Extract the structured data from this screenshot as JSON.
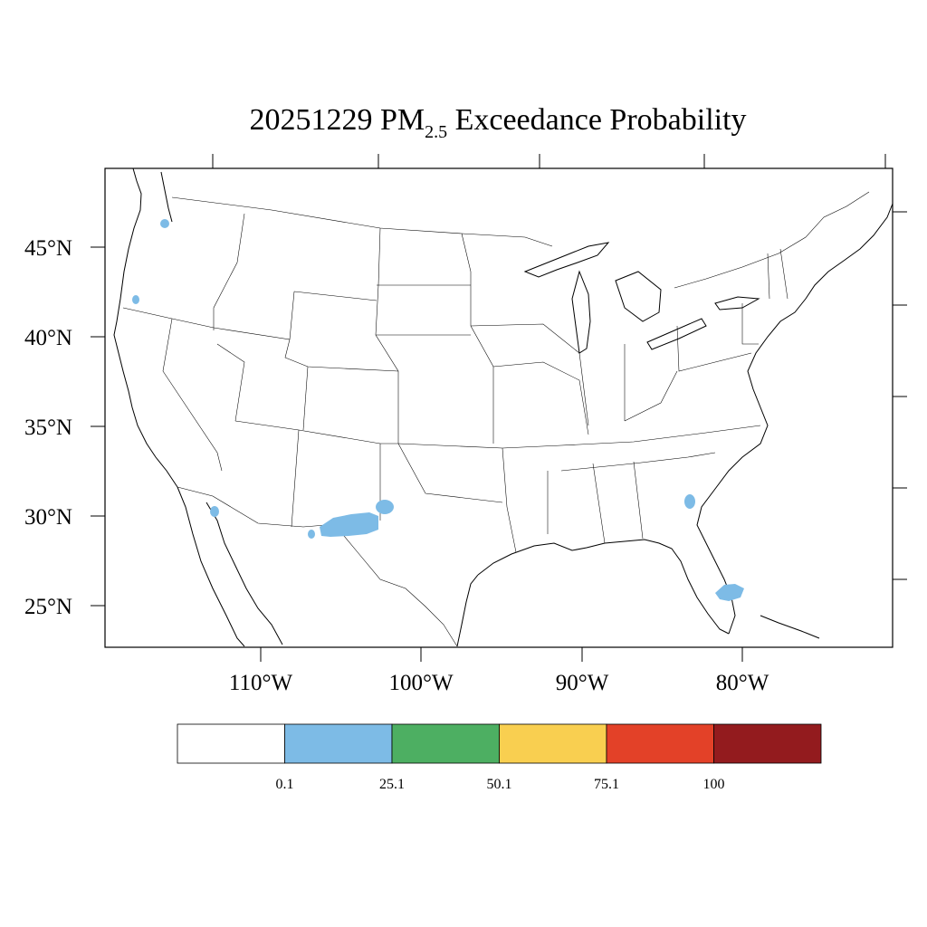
{
  "title": {
    "date": "20251229",
    "pm_text": "PM",
    "pm_subscript": "2.5",
    "suffix": "Exceedance Probability"
  },
  "map": {
    "lat_labels": [
      "45°N",
      "40°N",
      "35°N",
      "30°N",
      "25°N"
    ],
    "lon_labels": [
      "110°W",
      "100°W",
      "90°W",
      "80°W"
    ],
    "highlight_color": "#7dbbe6",
    "highlight_regions": [
      "western-washington",
      "southern-oregon",
      "northwest-sonora-gulf-coast",
      "southeast-new-mexico-west-texas",
      "southeast-georgia",
      "south-florida"
    ]
  },
  "colorbar": {
    "colors": [
      "#ffffff",
      "#7dbbe6",
      "#4daf62",
      "#f9cf50",
      "#e34128",
      "#931b1e"
    ],
    "labels": [
      "0.1",
      "25.1",
      "50.1",
      "75.1",
      "100"
    ]
  }
}
